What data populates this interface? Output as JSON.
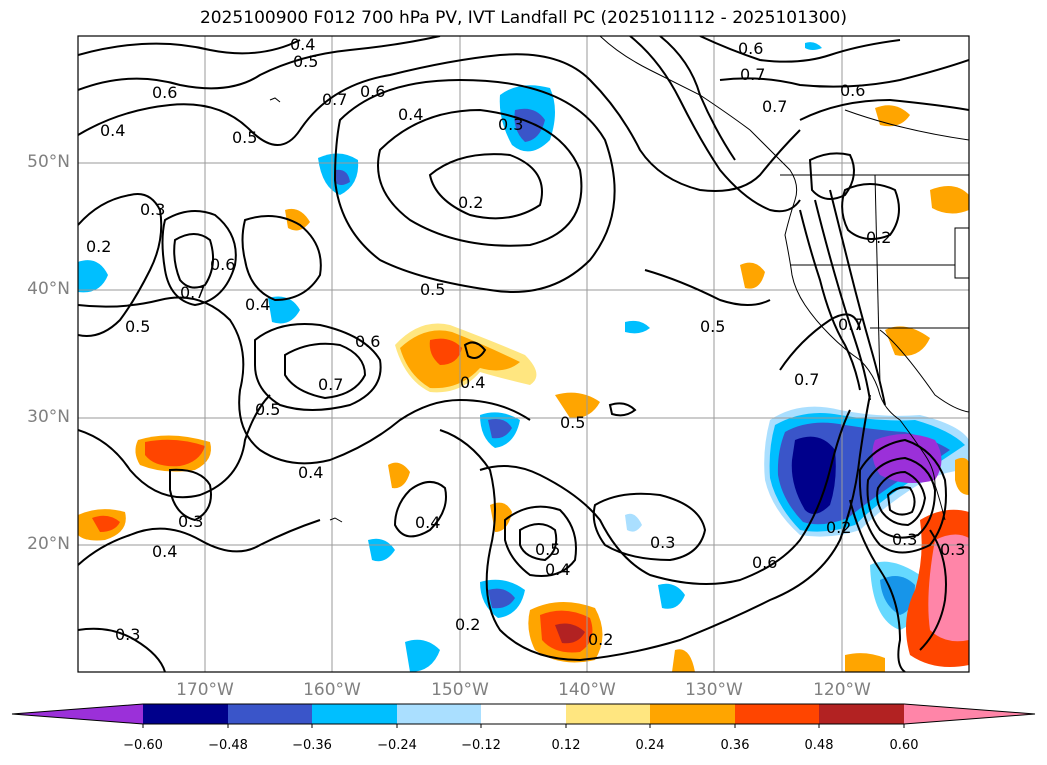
{
  "title": "2025100900 F012 700 hPa PV, IVT Landfall PC (2025101112 - 2025101300)",
  "lat_labels": [
    "50°N",
    "40°N",
    "30°N",
    "20°N"
  ],
  "lon_labels": [
    "170°W",
    "160°W",
    "150°W",
    "140°W",
    "130°W",
    "120°W"
  ],
  "contour_labels": [
    "0.4",
    "0.5",
    "0.6",
    "0.7",
    "0.6",
    "0.4",
    "0.3",
    "0.2",
    "0.6",
    "0.7",
    "0.7",
    "0.6",
    "0.5",
    "0.4",
    "0.3",
    "0.2",
    "0.7",
    "0.6",
    "0.4",
    "0.5",
    "0.6",
    "0.7",
    "0.5",
    "0.4",
    "0.5",
    "0.5",
    "0.4",
    "0.3",
    "0.4",
    "0.3",
    "0.4",
    "0.5",
    "0.4",
    "0.3",
    "0.6",
    "0.2",
    "0.2",
    "0.2",
    "0.7",
    "0.7",
    "0.5",
    "0.2",
    "0.3",
    "0.3"
  ],
  "colorbar": {
    "ticks": [
      "−0.60",
      "−0.48",
      "−0.36",
      "−0.24",
      "−0.12",
      "0.12",
      "0.24",
      "0.36",
      "0.48",
      "0.60"
    ],
    "colors": [
      "#9b30d9",
      "#00008b",
      "#3a55c9",
      "#00bfff",
      "#aadfff",
      "#ffffff",
      "#ffe680",
      "#ffa500",
      "#ff4500",
      "#b22222",
      "#ff85a8"
    ]
  },
  "fill_colors": {
    "light_blue": "#aadfff",
    "cyan": "#00bfff",
    "blue": "#3a55c9",
    "navy": "#00008b",
    "purple": "#9b30d9",
    "yellow": "#ffe680",
    "orange": "#ffa500",
    "red_orange": "#ff4500",
    "dark_red": "#b22222",
    "pink": "#ff85a8"
  }
}
